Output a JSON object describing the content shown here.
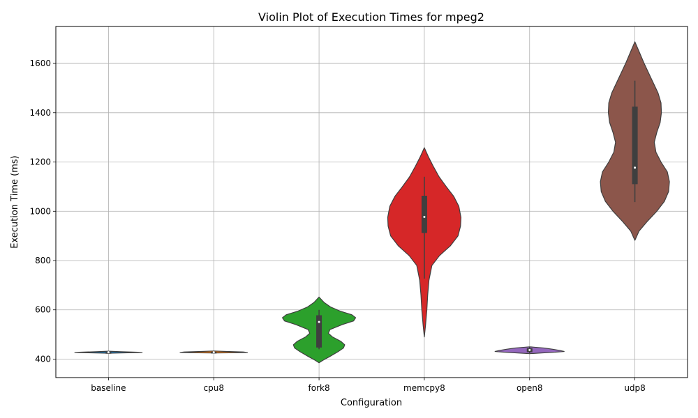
{
  "chart_data": {
    "type": "violin",
    "title": "Violin Plot of Execution Times for mpeg2",
    "xlabel": "Configuration",
    "ylabel": "Execution Time (ms)",
    "ylim": [
      325,
      1750
    ],
    "yticks": [
      400,
      600,
      800,
      1000,
      1200,
      1400,
      1600
    ],
    "grid": true,
    "categories": [
      "baseline",
      "cpu8",
      "fork8",
      "memcpy8",
      "open8",
      "udp8"
    ],
    "series": [
      {
        "category": "baseline",
        "color": "#1f77b4",
        "profile": [
          [
            424,
            0.0
          ],
          [
            426,
            0.55
          ],
          [
            427,
            0.8
          ],
          [
            428,
            0.7
          ],
          [
            430,
            0.3
          ],
          [
            432,
            0.0
          ]
        ],
        "q1": 427,
        "median": 428,
        "q3": 429,
        "whisker_low": 426,
        "whisker_high": 430
      },
      {
        "category": "cpu8",
        "color": "#ff7f0e",
        "profile": [
          [
            425,
            0.0
          ],
          [
            426,
            0.55
          ],
          [
            427,
            0.8
          ],
          [
            429,
            0.7
          ],
          [
            431,
            0.3
          ],
          [
            433,
            0.0
          ]
        ],
        "q1": 427,
        "median": 428,
        "q3": 430,
        "whisker_low": 426,
        "whisker_high": 431
      },
      {
        "category": "fork8",
        "color": "#2ca02c",
        "profile": [
          [
            385,
            0.0
          ],
          [
            395,
            0.09
          ],
          [
            410,
            0.25
          ],
          [
            430,
            0.45
          ],
          [
            445,
            0.58
          ],
          [
            458,
            0.61
          ],
          [
            472,
            0.52
          ],
          [
            490,
            0.32
          ],
          [
            505,
            0.22
          ],
          [
            520,
            0.26
          ],
          [
            540,
            0.55
          ],
          [
            555,
            0.82
          ],
          [
            568,
            0.87
          ],
          [
            580,
            0.78
          ],
          [
            595,
            0.5
          ],
          [
            612,
            0.27
          ],
          [
            630,
            0.12
          ],
          [
            652,
            0.0
          ]
        ],
        "q1": 447,
        "median": 551,
        "q3": 578,
        "whisker_low": 440,
        "whisker_high": 600
      },
      {
        "category": "memcpy8",
        "color": "#d62728",
        "profile": [
          [
            490,
            0.0
          ],
          [
            540,
            0.03
          ],
          [
            600,
            0.06
          ],
          [
            660,
            0.08
          ],
          [
            720,
            0.11
          ],
          [
            780,
            0.18
          ],
          [
            820,
            0.36
          ],
          [
            860,
            0.62
          ],
          [
            900,
            0.8
          ],
          [
            940,
            0.86
          ],
          [
            975,
            0.87
          ],
          [
            1020,
            0.82
          ],
          [
            1060,
            0.7
          ],
          [
            1100,
            0.52
          ],
          [
            1140,
            0.35
          ],
          [
            1180,
            0.22
          ],
          [
            1220,
            0.1
          ],
          [
            1258,
            0.0
          ]
        ],
        "q1": 912,
        "median": 977,
        "q3": 1063,
        "whisker_low": 727,
        "whisker_high": 1140
      },
      {
        "category": "open8",
        "color": "#9467bd",
        "profile": [
          [
            422,
            0.0
          ],
          [
            425,
            0.28
          ],
          [
            428,
            0.6
          ],
          [
            431,
            0.82
          ],
          [
            435,
            0.72
          ],
          [
            440,
            0.55
          ],
          [
            445,
            0.35
          ],
          [
            450,
            0.0
          ]
        ],
        "q1": 428,
        "median": 437,
        "q3": 444,
        "whisker_low": 424,
        "whisker_high": 449
      },
      {
        "category": "udp8",
        "color": "#8c564b",
        "profile": [
          [
            882,
            0.0
          ],
          [
            920,
            0.1
          ],
          [
            960,
            0.3
          ],
          [
            1000,
            0.52
          ],
          [
            1040,
            0.7
          ],
          [
            1080,
            0.8
          ],
          [
            1120,
            0.82
          ],
          [
            1160,
            0.77
          ],
          [
            1200,
            0.62
          ],
          [
            1240,
            0.5
          ],
          [
            1280,
            0.46
          ],
          [
            1320,
            0.52
          ],
          [
            1360,
            0.6
          ],
          [
            1400,
            0.63
          ],
          [
            1440,
            0.62
          ],
          [
            1480,
            0.55
          ],
          [
            1520,
            0.44
          ],
          [
            1560,
            0.33
          ],
          [
            1600,
            0.22
          ],
          [
            1640,
            0.12
          ],
          [
            1688,
            0.0
          ]
        ],
        "q1": 1110,
        "median": 1177,
        "q3": 1425,
        "whisker_low": 1037,
        "whisker_high": 1530
      }
    ]
  }
}
